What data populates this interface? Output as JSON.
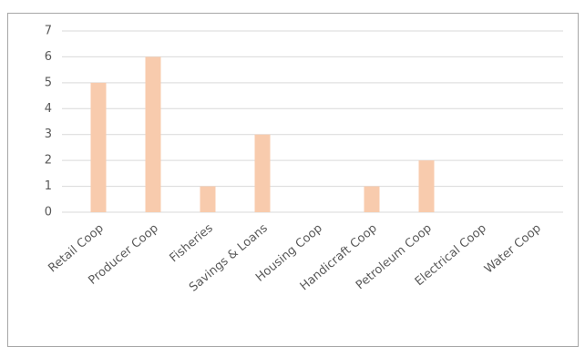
{
  "chart_data": {
    "type": "bar",
    "categories": [
      "Retail Coop",
      "Producer Coop",
      "Fisheries",
      "Savings & Loans",
      "Housing Coop",
      "Handicraft Coop",
      "Petroleum Coop",
      "Electrical Coop",
      "Water Coop"
    ],
    "values": [
      5,
      6,
      1,
      3,
      0,
      1,
      2,
      0,
      0
    ],
    "color": "#f8cbad",
    "ylim": [
      0,
      7
    ],
    "yticks": [
      0,
      1,
      2,
      3,
      4,
      5,
      6,
      7
    ],
    "grid": true
  }
}
